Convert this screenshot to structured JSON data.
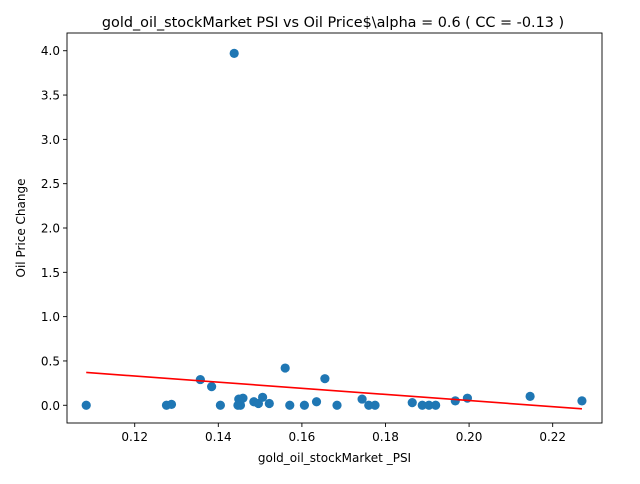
{
  "chart_data": {
    "type": "scatter",
    "title": "gold_oil_stockMarket  PSI vs Oil Price$\\alpha = 0.6 ( CC = -0.13 )",
    "xlabel": "gold_oil_stockMarket _PSI",
    "ylabel": "Oil Price Change",
    "xlim": [
      0.1038,
      0.2318
    ],
    "ylim": [
      -0.2,
      4.2
    ],
    "x_ticks": [
      0.12,
      0.14,
      0.16,
      0.18,
      0.2,
      0.22
    ],
    "x_tick_labels": [
      "0.12",
      "0.14",
      "0.16",
      "0.18",
      "0.20",
      "0.22"
    ],
    "y_ticks": [
      0.0,
      0.5,
      1.0,
      1.5,
      2.0,
      2.5,
      3.0,
      3.5,
      4.0
    ],
    "y_tick_labels": [
      "0.0",
      "0.5",
      "1.0",
      "1.5",
      "2.0",
      "2.5",
      "3.0",
      "3.5",
      "4.0"
    ],
    "grid": false,
    "colors": {
      "points": "#1f77b4",
      "fit_line": "#ff0000",
      "axes": "#000000"
    },
    "points": [
      {
        "x": 0.1084,
        "y": 0.0
      },
      {
        "x": 0.1276,
        "y": 0.0
      },
      {
        "x": 0.1288,
        "y": 0.01
      },
      {
        "x": 0.1357,
        "y": 0.29
      },
      {
        "x": 0.1384,
        "y": 0.21
      },
      {
        "x": 0.1405,
        "y": 0.0
      },
      {
        "x": 0.1438,
        "y": 3.97
      },
      {
        "x": 0.1447,
        "y": 0.0
      },
      {
        "x": 0.1449,
        "y": 0.07
      },
      {
        "x": 0.1453,
        "y": 0.0
      },
      {
        "x": 0.1459,
        "y": 0.08
      },
      {
        "x": 0.1485,
        "y": 0.04
      },
      {
        "x": 0.1496,
        "y": 0.02
      },
      {
        "x": 0.1506,
        "y": 0.09
      },
      {
        "x": 0.1522,
        "y": 0.02
      },
      {
        "x": 0.156,
        "y": 0.42
      },
      {
        "x": 0.1571,
        "y": 0.0
      },
      {
        "x": 0.1606,
        "y": 0.0
      },
      {
        "x": 0.1635,
        "y": 0.04
      },
      {
        "x": 0.1655,
        "y": 0.3
      },
      {
        "x": 0.1684,
        "y": 0.0
      },
      {
        "x": 0.1744,
        "y": 0.07
      },
      {
        "x": 0.176,
        "y": 0.0
      },
      {
        "x": 0.1775,
        "y": 0.0
      },
      {
        "x": 0.1864,
        "y": 0.03
      },
      {
        "x": 0.1888,
        "y": 0.0
      },
      {
        "x": 0.1904,
        "y": 0.0
      },
      {
        "x": 0.192,
        "y": 0.0
      },
      {
        "x": 0.1967,
        "y": 0.05
      },
      {
        "x": 0.1996,
        "y": 0.08
      },
      {
        "x": 0.2146,
        "y": 0.1
      },
      {
        "x": 0.227,
        "y": 0.05
      }
    ],
    "fit_line": {
      "x": [
        0.1084,
        0.227
      ],
      "y": [
        0.37,
        -0.04
      ]
    }
  }
}
